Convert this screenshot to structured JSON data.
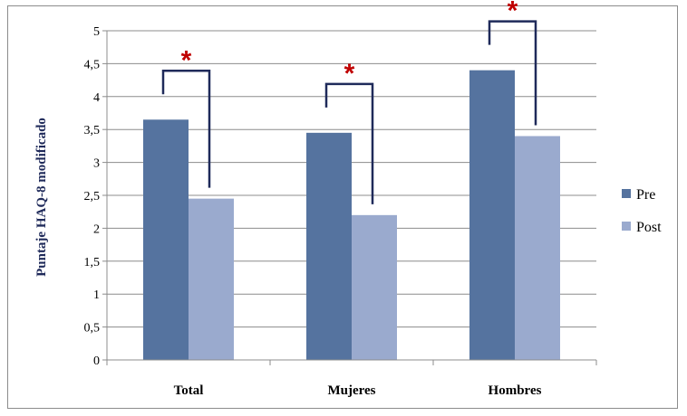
{
  "chart_data": {
    "type": "bar",
    "title": "",
    "xlabel": "",
    "ylabel": "Puntaje HAQ-8 modificado",
    "ylim": [
      0,
      5
    ],
    "yticks": [
      "0",
      "0,5",
      "1",
      "1,5",
      "2",
      "2,5",
      "3",
      "3,5",
      "4",
      "4,5",
      "5"
    ],
    "grid": true,
    "legend_position": "right",
    "categories": [
      "Total",
      "Mujeres",
      "Hombres"
    ],
    "series": [
      {
        "name": "Pre",
        "values": [
          3.65,
          3.45,
          4.4
        ],
        "color": "#55739f"
      },
      {
        "name": "Post",
        "values": [
          2.45,
          2.2,
          3.4
        ],
        "color": "#9aaace"
      }
    ],
    "annotations": [
      {
        "category": "Total",
        "text": "*"
      },
      {
        "category": "Mujeres",
        "text": "*"
      },
      {
        "category": "Hombres",
        "text": "*"
      }
    ],
    "annotation_color": "#c00000",
    "bracket_color": "#1f2a5a"
  }
}
